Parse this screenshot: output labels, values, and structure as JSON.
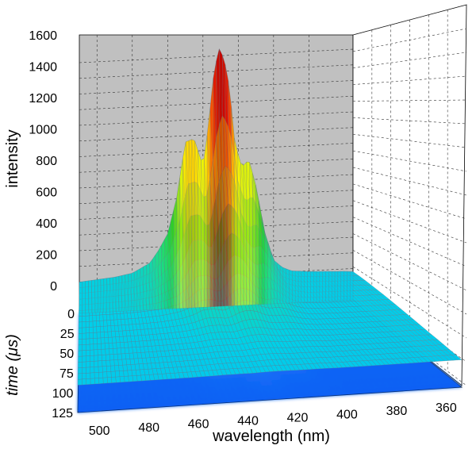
{
  "chart_data": {
    "type": "surface3d",
    "zlabel": "intensity",
    "ylabel_prefix": "time (",
    "ylabel_mu": "μ",
    "ylabel_suffix": "s)",
    "xlabel": "wavelength (nm)",
    "z_ticks": [
      "1600",
      "1400",
      "1200",
      "1000",
      "800",
      "600",
      "400",
      "200",
      "0"
    ],
    "time_ticks": [
      "0",
      "25",
      "50",
      "75",
      "100",
      "125"
    ],
    "wavelength_ticks": [
      "500",
      "480",
      "460",
      "440",
      "420",
      "400",
      "380",
      "360"
    ],
    "zlim": [
      0,
      1600
    ],
    "time_lim": [
      0,
      125
    ],
    "wavelength_lim": [
      510,
      355
    ],
    "grid": true,
    "spectrum_at_t0": {
      "wavelength_nm": [
        510,
        500,
        490,
        480,
        470,
        465,
        460,
        455,
        450,
        445,
        440,
        437,
        434,
        431,
        428,
        425,
        422,
        418,
        414,
        410,
        405,
        400,
        395,
        390,
        385,
        380,
        370,
        360,
        355
      ],
      "intensity": [
        200,
        210,
        220,
        240,
        300,
        380,
        480,
        700,
        1060,
        1080,
        900,
        1150,
        1480,
        1650,
        1580,
        1400,
        1050,
        880,
        930,
        760,
        460,
        280,
        230,
        205,
        200,
        195,
        190,
        185,
        180
      ]
    },
    "colormap": [
      "#0000c0",
      "#0a50f0",
      "#1e90ff",
      "#00d0e8",
      "#20e080",
      "#20d020",
      "#a0e020",
      "#ffff00",
      "#ffb000",
      "#ff5000",
      "#e00000",
      "#a00000"
    ]
  }
}
